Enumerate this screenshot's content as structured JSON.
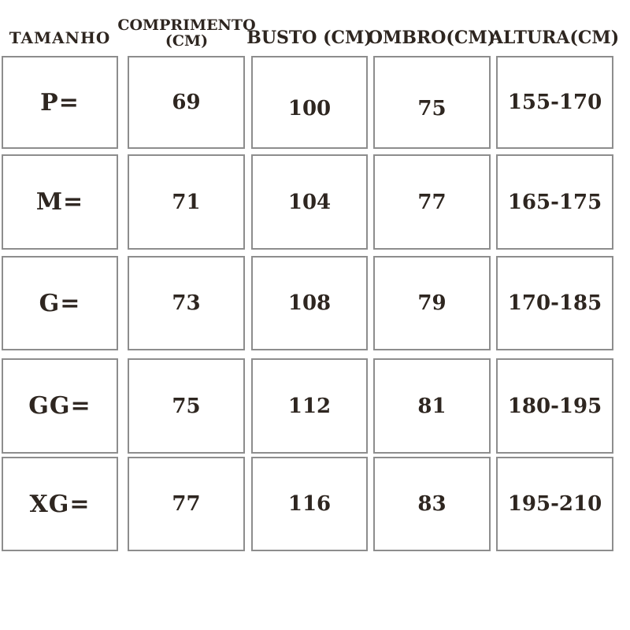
{
  "table": {
    "columns": [
      {
        "id": "tamanho",
        "header": "TAMANHO",
        "cells": [
          "P=",
          "M=",
          "G=",
          "GG=",
          "XG="
        ]
      },
      {
        "id": "comprimento",
        "header": "COMPRIMENTO (CM)",
        "cells": [
          "69",
          "71",
          "73",
          "75",
          "77"
        ]
      },
      {
        "id": "busto",
        "header": "BUSTO (CM)",
        "cells": [
          "100",
          "104",
          "108",
          "112",
          "116"
        ]
      },
      {
        "id": "ombro",
        "header": "OMBRO(CM)",
        "cells": [
          "75",
          "77",
          "79",
          "81",
          "83"
        ]
      },
      {
        "id": "altura",
        "header": "ALTURA(CM)",
        "cells": [
          "155-170",
          "165-175",
          "170-185",
          "180-195",
          "195-210"
        ]
      }
    ]
  },
  "chart_data": {
    "type": "table",
    "columns": [
      "TAMANHO",
      "COMPRIMENTO (CM)",
      "BUSTO (CM)",
      "OMBRO(CM)",
      "ALTURA(CM)"
    ],
    "rows": [
      [
        "P=",
        "69",
        "100",
        "75",
        "155-170"
      ],
      [
        "M=",
        "71",
        "104",
        "77",
        "165-175"
      ],
      [
        "G=",
        "73",
        "108",
        "79",
        "170-185"
      ],
      [
        "GG=",
        "75",
        "112",
        "81",
        "180-195"
      ],
      [
        "XG=",
        "77",
        "116",
        "83",
        "195-210"
      ]
    ]
  },
  "colors": {
    "text": "#2e2620",
    "cell_border": "#8d8d8d",
    "background": "#ffffff"
  }
}
